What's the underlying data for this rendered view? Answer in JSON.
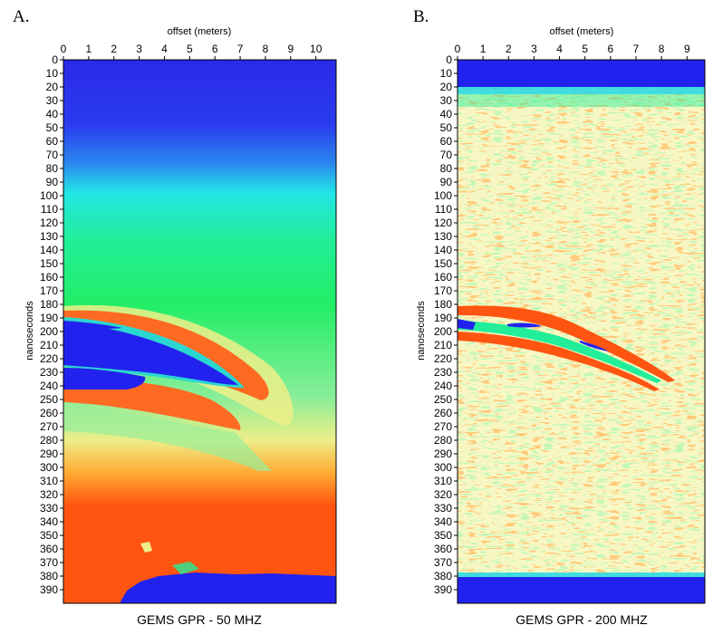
{
  "chart_data": [
    {
      "type": "heatmap",
      "panel_label": "A.",
      "xlabel": "offset (meters)",
      "ylabel": "nanoseconds",
      "caption": "GEMS GPR - 50 MHZ",
      "xlim": [
        0,
        10.8
      ],
      "ylim": [
        0,
        400
      ],
      "xticks": [
        0,
        1,
        2,
        3,
        4,
        5,
        6,
        7,
        8,
        9,
        10
      ],
      "yticks": [
        0,
        10,
        20,
        30,
        40,
        50,
        60,
        70,
        80,
        90,
        100,
        110,
        120,
        130,
        140,
        150,
        160,
        170,
        180,
        190,
        200,
        210,
        220,
        230,
        240,
        250,
        260,
        270,
        280,
        290,
        300,
        310,
        320,
        330,
        340,
        350,
        360,
        370,
        380,
        390
      ],
      "colormap": [
        "#2222ee",
        "#22e8e8",
        "#22ee77",
        "#eeee88",
        "#ff5511"
      ],
      "features": [
        {
          "name": "strong-reflection",
          "x": [
            0,
            7
          ],
          "t": [
            195,
            240
          ]
        },
        {
          "name": "late-blue-region",
          "x": [
            2,
            10.8
          ],
          "t": [
            372,
            400
          ]
        }
      ]
    },
    {
      "type": "heatmap",
      "panel_label": "B.",
      "xlabel": "offset (meters)",
      "ylabel": "nanoseconds",
      "caption": "GEMS GPR - 200 MHZ",
      "xlim": [
        0,
        9.7
      ],
      "ylim": [
        0,
        400
      ],
      "xticks": [
        0,
        1,
        2,
        3,
        4,
        5,
        6,
        7,
        8,
        9
      ],
      "yticks": [
        0,
        10,
        20,
        30,
        40,
        50,
        60,
        70,
        80,
        90,
        100,
        110,
        120,
        130,
        140,
        150,
        160,
        170,
        180,
        190,
        200,
        210,
        220,
        230,
        240,
        250,
        260,
        270,
        280,
        290,
        300,
        310,
        320,
        330,
        340,
        350,
        360,
        370,
        380,
        390
      ],
      "colormap": [
        "#2222ee",
        "#22e8e8",
        "#22ee77",
        "#eeee88",
        "#ff5511"
      ],
      "features": [
        {
          "name": "direct-arrival-band",
          "x": [
            0,
            9.7
          ],
          "t": [
            0,
            23
          ]
        },
        {
          "name": "dipping-reflection",
          "x": [
            0,
            8.2
          ],
          "t": [
            188,
            238
          ]
        },
        {
          "name": "bottom-blue-band",
          "x": [
            0,
            9.7
          ],
          "t": [
            380,
            400
          ]
        }
      ]
    }
  ]
}
